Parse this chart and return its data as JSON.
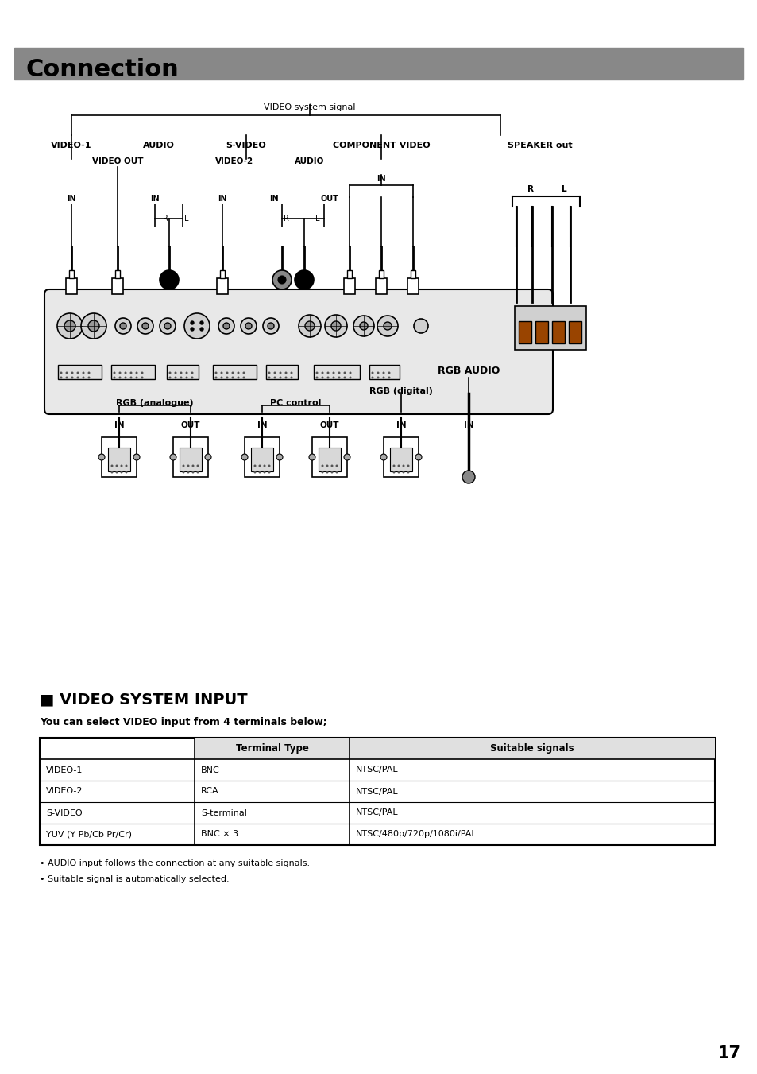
{
  "title": "Connection",
  "title_bg_color": "#888888",
  "title_text_color": "#000000",
  "page_bg": "#ffffff",
  "page_number": "17",
  "diagram_label_top": "VIDEO system signal",
  "col_labels": [
    "VIDEO-1",
    "AUDIO",
    "S-VIDEO",
    "COMPONENT VIDEO",
    "SPEAKER out"
  ],
  "sub_labels": [
    "VIDEO OUT",
    "VIDEO-2",
    "AUDIO"
  ],
  "bottom_labels": [
    "RGB (analogue)",
    "PC control",
    "RGB (digital)",
    "RGB AUDIO"
  ],
  "bottom_io": [
    "IN",
    "OUT",
    "IN",
    "OUT",
    "IN",
    "IN"
  ],
  "section_title": "■ VIDEO SYSTEM INPUT",
  "section_subtitle": "You can select VIDEO input from 4 terminals below;",
  "table_headers": [
    "",
    "Terminal Type",
    "Suitable signals"
  ],
  "table_rows": [
    [
      "VIDEO-1",
      "BNC",
      "NTSC/PAL"
    ],
    [
      "VIDEO-2",
      "RCA",
      "NTSC/PAL"
    ],
    [
      "S-VIDEO",
      "S-terminal",
      "NTSC/PAL"
    ],
    [
      "YUV (Y Pb/Cb Pr/Cr)",
      "BNC × 3",
      "NTSC/480p/720p/1080i/PAL"
    ]
  ],
  "notes": [
    "• AUDIO input follows the connection at any suitable signals.",
    "• Suitable signal is automatically selected."
  ]
}
